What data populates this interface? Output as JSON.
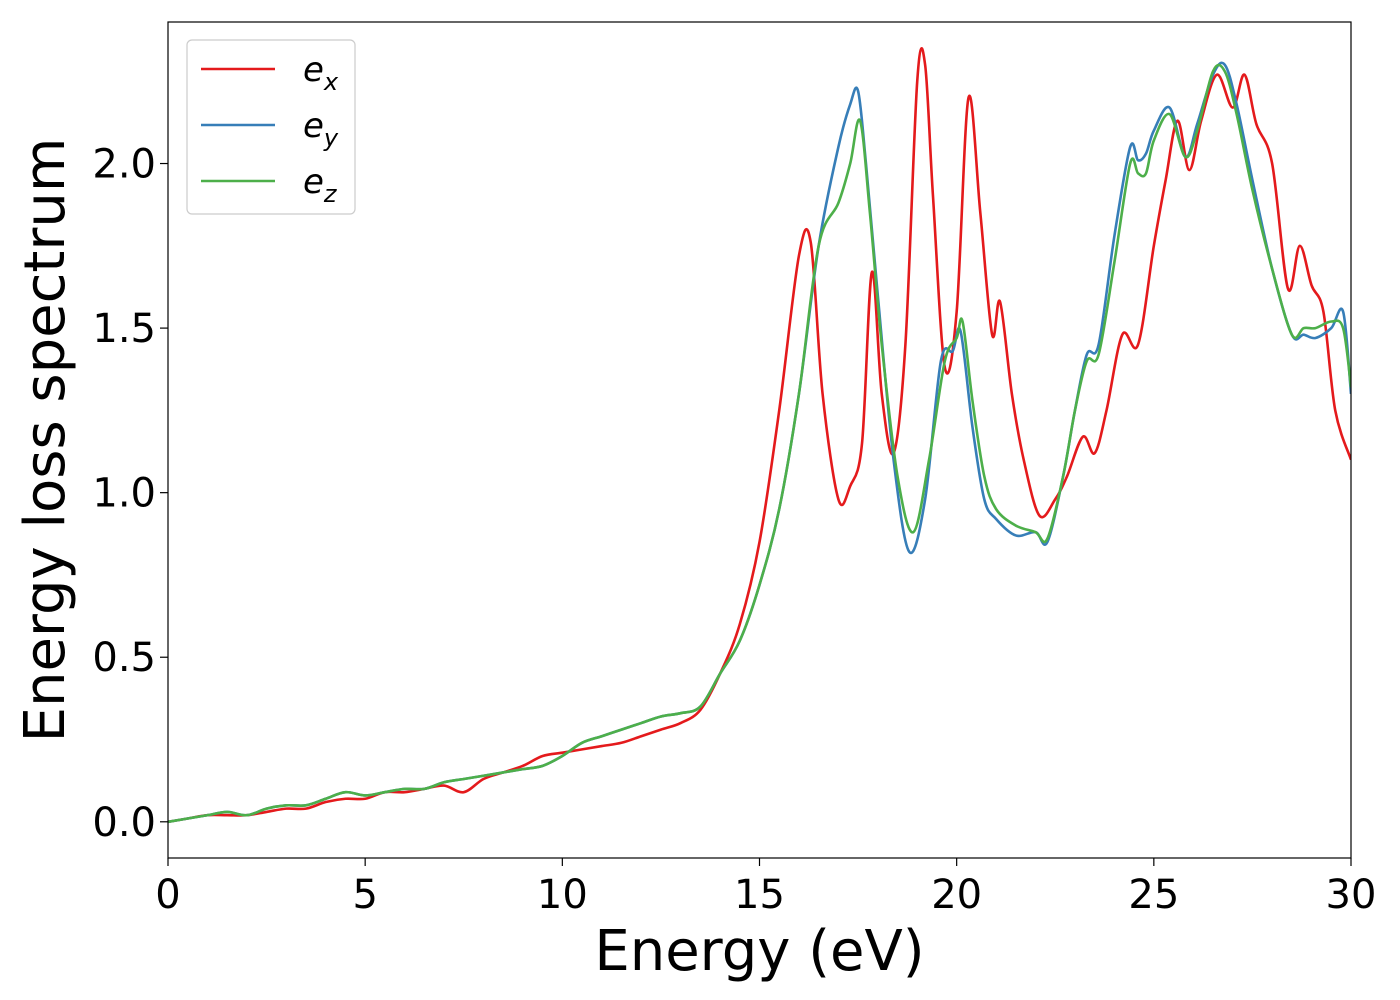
{
  "chart_data": {
    "type": "line",
    "xlabel": "Energy (eV)",
    "ylabel": "Energy loss spectrum",
    "xlim": [
      0,
      30
    ],
    "ylim": [
      -0.11,
      2.43
    ],
    "xticks": [
      0,
      5,
      10,
      15,
      20,
      25,
      30
    ],
    "xtick_labels": [
      "0",
      "5",
      "10",
      "15",
      "20",
      "25",
      "30"
    ],
    "yticks": [
      0.0,
      0.5,
      1.0,
      1.5,
      2.0
    ],
    "ytick_labels": [
      "0.0",
      "0.5",
      "1.0",
      "1.5",
      "2.0"
    ],
    "grid": false,
    "legend_position": "top-left",
    "series": [
      {
        "name": "e",
        "subscript": "x",
        "color": "#e41a1c",
        "x": [
          0,
          0.5,
          1,
          1.5,
          2,
          2.5,
          3,
          3.5,
          4,
          4.5,
          5,
          5.5,
          6,
          6.5,
          7,
          7.5,
          8,
          8.5,
          9,
          9.5,
          10,
          10.5,
          11,
          11.5,
          12,
          12.5,
          13,
          13.5,
          14,
          14.5,
          15,
          15.5,
          16,
          16.3,
          16.6,
          17,
          17.3,
          17.6,
          17.85,
          18.1,
          18.4,
          18.7,
          19,
          19.2,
          19.4,
          19.7,
          20,
          20.3,
          20.6,
          20.9,
          21.1,
          21.4,
          21.7,
          22.1,
          22.5,
          22.8,
          23.2,
          23.5,
          23.8,
          24.2,
          24.6,
          25,
          25.3,
          25.6,
          25.9,
          26.2,
          26.6,
          27,
          27.3,
          27.6,
          28,
          28.4,
          28.7,
          29,
          29.3,
          29.6,
          30
        ],
        "y": [
          0.0,
          0.01,
          0.02,
          0.02,
          0.02,
          0.03,
          0.04,
          0.04,
          0.06,
          0.07,
          0.07,
          0.09,
          0.09,
          0.1,
          0.11,
          0.09,
          0.13,
          0.15,
          0.17,
          0.2,
          0.21,
          0.22,
          0.23,
          0.24,
          0.26,
          0.28,
          0.3,
          0.34,
          0.45,
          0.6,
          0.85,
          1.25,
          1.72,
          1.76,
          1.3,
          0.98,
          1.02,
          1.15,
          1.67,
          1.3,
          1.12,
          1.45,
          2.25,
          2.3,
          1.9,
          1.38,
          1.55,
          2.2,
          1.85,
          1.48,
          1.58,
          1.3,
          1.1,
          0.93,
          0.98,
          1.05,
          1.17,
          1.12,
          1.25,
          1.48,
          1.45,
          1.75,
          1.95,
          2.13,
          1.98,
          2.13,
          2.27,
          2.17,
          2.27,
          2.12,
          2.0,
          1.62,
          1.75,
          1.63,
          1.55,
          1.25,
          1.1
        ]
      },
      {
        "name": "e",
        "subscript": "y",
        "color": "#377eb8",
        "x": [
          0,
          0.5,
          1,
          1.5,
          2,
          2.5,
          3,
          3.5,
          4,
          4.5,
          5,
          5.5,
          6,
          6.5,
          7,
          7.5,
          8,
          8.5,
          9,
          9.5,
          10,
          10.5,
          11,
          11.5,
          12,
          12.5,
          13,
          13.5,
          14,
          14.5,
          15,
          15.5,
          16,
          16.5,
          17,
          17.3,
          17.5,
          17.7,
          18,
          18.4,
          18.8,
          19.2,
          19.6,
          19.9,
          20.1,
          20.4,
          20.7,
          21,
          21.5,
          22,
          22.3,
          22.7,
          23,
          23.3,
          23.6,
          24,
          24.4,
          24.6,
          24.8,
          25,
          25.4,
          25.8,
          26.1,
          26.5,
          26.8,
          27.1,
          27.5,
          28,
          28.5,
          28.8,
          29.1,
          29.5,
          29.8,
          30
        ],
        "y": [
          0.0,
          0.01,
          0.02,
          0.03,
          0.02,
          0.04,
          0.05,
          0.05,
          0.07,
          0.09,
          0.08,
          0.09,
          0.1,
          0.1,
          0.12,
          0.13,
          0.14,
          0.15,
          0.16,
          0.17,
          0.2,
          0.24,
          0.26,
          0.28,
          0.3,
          0.32,
          0.33,
          0.35,
          0.45,
          0.55,
          0.72,
          0.95,
          1.3,
          1.75,
          2.05,
          2.18,
          2.22,
          2.0,
          1.6,
          1.1,
          0.82,
          0.98,
          1.4,
          1.43,
          1.49,
          1.2,
          0.98,
          0.92,
          0.87,
          0.88,
          0.85,
          1.05,
          1.25,
          1.42,
          1.45,
          1.78,
          2.05,
          2.01,
          2.03,
          2.1,
          2.17,
          2.02,
          2.12,
          2.27,
          2.3,
          2.18,
          1.95,
          1.68,
          1.48,
          1.48,
          1.47,
          1.5,
          1.55,
          1.3
        ]
      },
      {
        "name": "e",
        "subscript": "z",
        "color": "#4daf4a",
        "x": [
          0,
          0.5,
          1,
          1.5,
          2,
          2.5,
          3,
          3.5,
          4,
          4.5,
          5,
          5.5,
          6,
          6.5,
          7,
          7.5,
          8,
          8.5,
          9,
          9.5,
          10,
          10.5,
          11,
          11.5,
          12,
          12.5,
          13,
          13.5,
          14,
          14.5,
          15,
          15.5,
          16,
          16.5,
          17,
          17.3,
          17.55,
          17.8,
          18.1,
          18.5,
          18.9,
          19.3,
          19.7,
          20,
          20.15,
          20.4,
          20.7,
          21,
          21.5,
          22,
          22.3,
          22.7,
          23,
          23.3,
          23.6,
          24,
          24.4,
          24.6,
          24.8,
          25,
          25.4,
          25.8,
          26.1,
          26.5,
          26.8,
          27.1,
          27.5,
          28,
          28.5,
          28.8,
          29.1,
          29.5,
          29.8,
          30
        ],
        "y": [
          0.0,
          0.01,
          0.02,
          0.03,
          0.02,
          0.04,
          0.05,
          0.05,
          0.07,
          0.09,
          0.08,
          0.09,
          0.1,
          0.1,
          0.12,
          0.13,
          0.14,
          0.15,
          0.16,
          0.17,
          0.2,
          0.24,
          0.26,
          0.28,
          0.3,
          0.32,
          0.33,
          0.35,
          0.45,
          0.55,
          0.72,
          0.95,
          1.3,
          1.75,
          1.88,
          2.0,
          2.13,
          1.85,
          1.45,
          1.05,
          0.88,
          1.1,
          1.4,
          1.47,
          1.52,
          1.28,
          1.05,
          0.95,
          0.9,
          0.88,
          0.86,
          1.05,
          1.25,
          1.4,
          1.42,
          1.7,
          2.0,
          1.97,
          1.97,
          2.07,
          2.15,
          2.02,
          2.1,
          2.28,
          2.28,
          2.15,
          1.92,
          1.68,
          1.48,
          1.5,
          1.5,
          1.52,
          1.5,
          1.32
        ]
      }
    ]
  }
}
